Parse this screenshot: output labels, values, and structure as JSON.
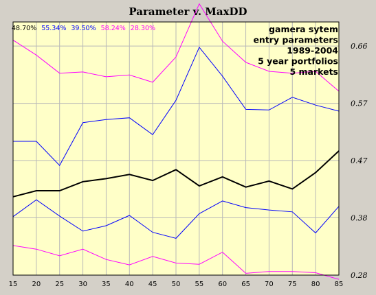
{
  "chart_data": {
    "type": "line",
    "title": "Parameter v. MaxDD",
    "x": [
      15,
      20,
      25,
      30,
      35,
      40,
      45,
      50,
      55,
      60,
      65,
      70,
      75,
      80,
      85
    ],
    "xlim": [
      15,
      85
    ],
    "ylim": [
      0.28,
      0.7
    ],
    "yticks": [
      "0.28",
      "0.38",
      "0.47",
      "0.57",
      "0.66"
    ],
    "ytick_values": [
      0.28,
      0.375,
      0.47,
      0.565,
      0.66
    ],
    "grid": true,
    "background": "#ffffc8",
    "gridColor": "#b8b8b8",
    "series": [
      {
        "color": "#ff00ff",
        "width": 1,
        "values": [
          0.67,
          0.645,
          0.615,
          0.617,
          0.609,
          0.612,
          0.6,
          0.642,
          0.73,
          0.668,
          0.633,
          0.618,
          0.615,
          0.618,
          0.585
        ]
      },
      {
        "color": "#0000ff",
        "width": 1,
        "values": [
          0.502,
          0.502,
          0.462,
          0.533,
          0.538,
          0.541,
          0.513,
          0.57,
          0.658,
          0.61,
          0.555,
          0.554,
          0.575,
          0.562,
          0.552
        ]
      },
      {
        "color": "#000000",
        "width": 2,
        "values": [
          0.41,
          0.42,
          0.42,
          0.435,
          0.44,
          0.447,
          0.437,
          0.455,
          0.428,
          0.443,
          0.426,
          0.436,
          0.423,
          0.45,
          0.486
        ]
      },
      {
        "color": "#0000ff",
        "width": 1,
        "values": [
          0.377,
          0.405,
          0.378,
          0.353,
          0.362,
          0.379,
          0.351,
          0.341,
          0.382,
          0.403,
          0.392,
          0.388,
          0.385,
          0.35,
          0.394
        ]
      },
      {
        "color": "#ff00ff",
        "width": 1,
        "values": [
          0.329,
          0.323,
          0.312,
          0.323,
          0.306,
          0.297,
          0.311,
          0.3,
          0.298,
          0.318,
          0.283,
          0.286,
          0.286,
          0.284,
          0.273
        ]
      }
    ],
    "legend": [
      {
        "text": "48.70%",
        "color": "#000000"
      },
      {
        "text": "55.34%",
        "color": "#0000ff"
      },
      {
        "text": "39.50%",
        "color": "#0000ff"
      },
      {
        "text": "58.24%",
        "color": "#ff00ff"
      },
      {
        "text": "28.30%",
        "color": "#ff00ff"
      }
    ],
    "annotation": [
      "gamera sytem",
      "entry parameters",
      "1989-2004",
      "5 year portfolios",
      "5 markets"
    ]
  }
}
